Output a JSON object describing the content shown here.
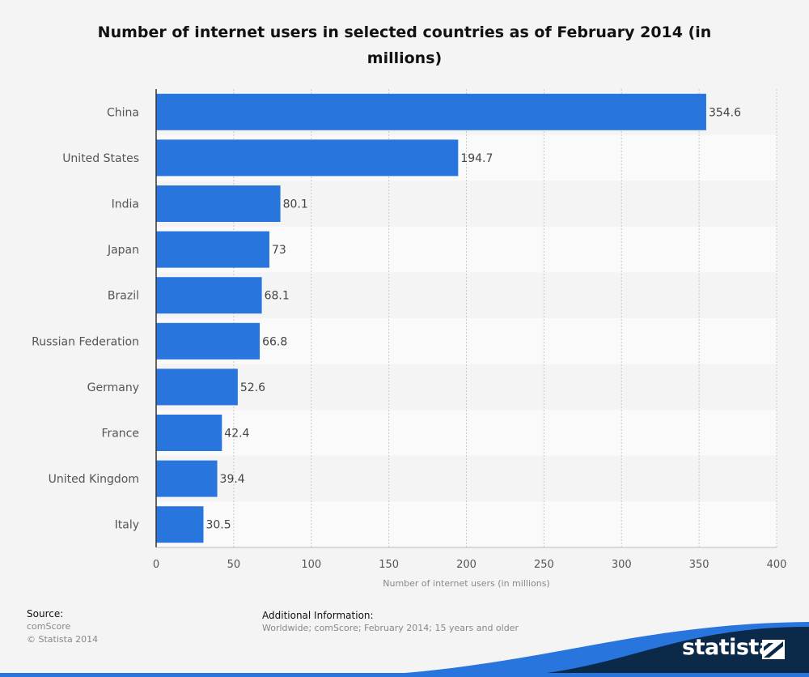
{
  "chart_data": {
    "type": "bar",
    "orientation": "horizontal",
    "title": "Number of internet users in selected countries as of February 2014 (in millions)",
    "categories": [
      "China",
      "United States",
      "India",
      "Japan",
      "Brazil",
      "Russian Federation",
      "Germany",
      "France",
      "United Kingdom",
      "Italy"
    ],
    "values": [
      354.6,
      194.7,
      80.1,
      73,
      68.1,
      66.8,
      52.6,
      42.4,
      39.4,
      30.5
    ],
    "value_labels": [
      "354.6",
      "194.7",
      "80.1",
      "73",
      "68.1",
      "66.8",
      "52.6",
      "42.4",
      "39.4",
      "30.5"
    ],
    "xlabel": "Number of internet users (in millions)",
    "ylabel": "",
    "xlim": [
      0,
      400
    ],
    "xticks": [
      0,
      50,
      100,
      150,
      200,
      250,
      300,
      350,
      400
    ],
    "grid": true,
    "bar_color": "#2876dd"
  },
  "footer": {
    "source_heading": "Source:",
    "source_lines": [
      "comScore",
      "© Statista 2014"
    ],
    "info_heading": "Additional Information:",
    "info_text": "Worldwide; comScore; February 2014; 15 years and older"
  },
  "brand": {
    "name": "statista",
    "logo_icon": "statista-logo-icon",
    "color": "#0b2a4a",
    "accent": "#2876dd"
  }
}
